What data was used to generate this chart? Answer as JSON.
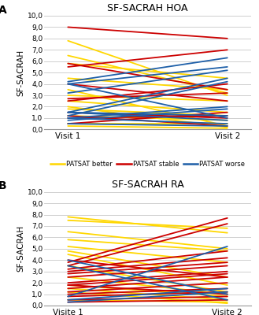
{
  "panel_A": {
    "title": "SF-SACRAH HOA",
    "label": "A",
    "xlabel1": "Visit 1",
    "xlabel2": "Visit 2",
    "ylabel": "SF-SACRAH",
    "ylim": [
      0,
      10
    ],
    "yticks": [
      0.0,
      1.0,
      2.0,
      3.0,
      4.0,
      5.0,
      6.0,
      7.0,
      8.0,
      9.0,
      10.0
    ],
    "ytick_labels": [
      "0,0",
      "1,0",
      "2,0",
      "3,0",
      "4,0",
      "5,0",
      "6,0",
      "7,0",
      "8,0",
      "9,0",
      "10,0"
    ],
    "yellow_lines": [
      [
        6.5,
        3.2
      ],
      [
        7.8,
        3.0
      ],
      [
        5.8,
        4.5
      ],
      [
        4.5,
        3.5
      ],
      [
        3.0,
        2.5
      ],
      [
        2.5,
        1.5
      ],
      [
        1.8,
        1.2
      ],
      [
        1.2,
        0.8
      ],
      [
        0.5,
        0.5
      ],
      [
        2.0,
        0.2
      ],
      [
        3.5,
        0.3
      ],
      [
        0.3,
        0.1
      ]
    ],
    "red_lines": [
      [
        9.0,
        8.0
      ],
      [
        5.5,
        7.0
      ],
      [
        5.8,
        3.5
      ],
      [
        2.5,
        4.0
      ],
      [
        2.7,
        3.2
      ],
      [
        1.0,
        1.2
      ],
      [
        1.2,
        0.3
      ],
      [
        0.5,
        1.5
      ],
      [
        1.5,
        1.0
      ],
      [
        4.0,
        2.5
      ]
    ],
    "blue_lines": [
      [
        4.2,
        6.3
      ],
      [
        4.0,
        5.5
      ],
      [
        3.2,
        5.2
      ],
      [
        1.5,
        4.5
      ],
      [
        1.2,
        4.2
      ],
      [
        1.0,
        2.0
      ],
      [
        0.8,
        1.8
      ],
      [
        1.5,
        1.2
      ],
      [
        4.0,
        1.0
      ],
      [
        1.5,
        0.8
      ],
      [
        1.0,
        0.5
      ],
      [
        0.5,
        0.3
      ]
    ]
  },
  "panel_B": {
    "title": "SF-SACRAH RA",
    "label": "B",
    "xlabel1": "Visite 1",
    "xlabel2": "Visite 2",
    "ylabel": "SF-SACRAH",
    "ylim": [
      0,
      10
    ],
    "yticks": [
      0.0,
      1.0,
      2.0,
      3.0,
      4.0,
      5.0,
      6.0,
      7.0,
      8.0,
      9.0,
      10.0
    ],
    "ytick_labels": [
      "0,0",
      "1,0",
      "2,0",
      "3,0",
      "4,0",
      "5,0",
      "6,0",
      "7,0",
      "8,0",
      "9,0",
      "10,0"
    ],
    "yellow_lines": [
      [
        7.8,
        6.4
      ],
      [
        7.5,
        6.8
      ],
      [
        6.5,
        5.0
      ],
      [
        5.8,
        4.8
      ],
      [
        5.2,
        3.8
      ],
      [
        4.8,
        2.5
      ],
      [
        4.5,
        1.8
      ],
      [
        3.5,
        1.2
      ],
      [
        2.5,
        1.0
      ],
      [
        1.8,
        0.8
      ],
      [
        1.5,
        0.5
      ],
      [
        0.5,
        0.3
      ],
      [
        1.2,
        0.2
      ]
    ],
    "red_lines": [
      [
        3.8,
        7.7
      ],
      [
        3.5,
        7.2
      ],
      [
        3.2,
        4.8
      ],
      [
        3.0,
        4.2
      ],
      [
        2.8,
        3.8
      ],
      [
        2.5,
        3.5
      ],
      [
        2.0,
        3.0
      ],
      [
        1.8,
        2.8
      ],
      [
        1.5,
        2.5
      ],
      [
        1.2,
        2.0
      ],
      [
        1.0,
        1.5
      ],
      [
        0.8,
        1.2
      ],
      [
        0.5,
        0.8
      ],
      [
        0.3,
        0.5
      ],
      [
        1.8,
        1.0
      ],
      [
        4.0,
        2.5
      ]
    ],
    "blue_lines": [
      [
        0.8,
        5.2
      ],
      [
        0.5,
        1.5
      ],
      [
        0.3,
        1.2
      ],
      [
        4.0,
        1.0
      ],
      [
        3.5,
        0.5
      ]
    ]
  },
  "colors": {
    "yellow": "#FFD700",
    "red": "#CC0000",
    "blue": "#1E5FA8"
  },
  "legend": {
    "better": "PATSAT better",
    "stable": "PATSAT stable",
    "worse": "PATSAT worse"
  },
  "background": "#FFFFFF",
  "linewidth": 1.3
}
